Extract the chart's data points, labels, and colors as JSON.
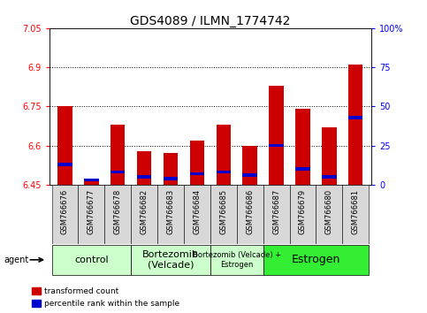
{
  "title": "GDS4089 / ILMN_1774742",
  "samples": [
    "GSM766676",
    "GSM766677",
    "GSM766678",
    "GSM766682",
    "GSM766683",
    "GSM766684",
    "GSM766685",
    "GSM766686",
    "GSM766687",
    "GSM766679",
    "GSM766680",
    "GSM766681"
  ],
  "red_values": [
    6.75,
    6.47,
    6.68,
    6.58,
    6.57,
    6.62,
    6.68,
    6.6,
    6.83,
    6.74,
    6.67,
    6.91
  ],
  "blue_percentiles": [
    13,
    3,
    8,
    5,
    4,
    7,
    8,
    6,
    25,
    10,
    5,
    43
  ],
  "ymin": 6.45,
  "ymax": 7.05,
  "yticks": [
    6.45,
    6.6,
    6.75,
    6.9,
    7.05
  ],
  "ytick_labels": [
    "6.45",
    "6.6",
    "6.75",
    "6.9",
    "7.05"
  ],
  "right_yticks": [
    0,
    25,
    50,
    75,
    100
  ],
  "right_ytick_labels": [
    "0",
    "25",
    "50",
    "75",
    "100%"
  ],
  "dotted_lines": [
    6.9,
    6.75,
    6.6
  ],
  "groups": [
    {
      "label": "control",
      "start": 0,
      "end": 2,
      "color": "#ccffcc",
      "font_size": 8
    },
    {
      "label": "Bortezomib\n(Velcade)",
      "start": 3,
      "end": 5,
      "color": "#ccffcc",
      "font_size": 8
    },
    {
      "label": "Bortezomib (Velcade) +\nEstrogen",
      "start": 6,
      "end": 7,
      "color": "#ccffcc",
      "font_size": 6
    },
    {
      "label": "Estrogen",
      "start": 8,
      "end": 11,
      "color": "#33ee33",
      "font_size": 9
    }
  ],
  "bar_color": "#CC0000",
  "blue_color": "#0000CC",
  "bar_width": 0.55,
  "agent_label": "agent",
  "legend_red": "transformed count",
  "legend_blue": "percentile rank within the sample",
  "title_fontsize": 10,
  "axis_fontsize": 7,
  "tick_fontsize": 6
}
